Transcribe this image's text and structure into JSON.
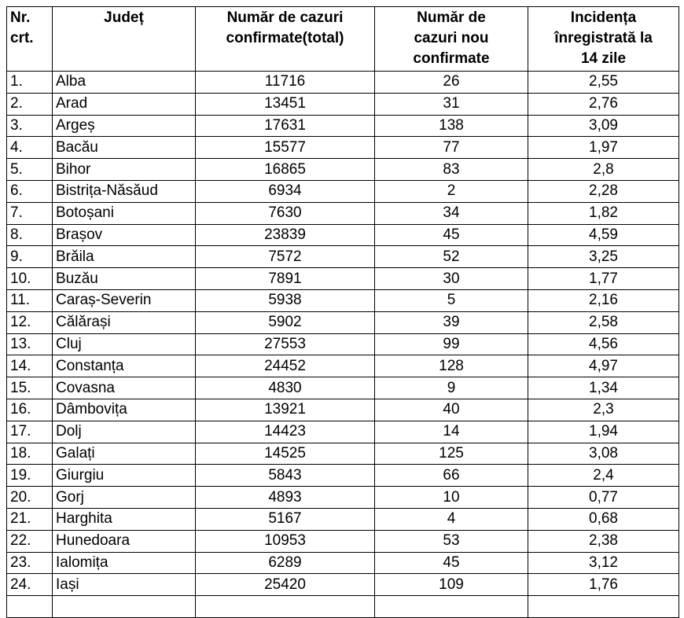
{
  "header": {
    "nr": [
      "Nr.",
      "crt."
    ],
    "judet": [
      "Județ"
    ],
    "total": [
      "Număr de cazuri",
      "confirmate(total)"
    ],
    "noi": [
      "Număr de",
      "cazuri nou",
      "confirmate"
    ],
    "incidenta": [
      "Incidența",
      "înregistrată la",
      "14 zile"
    ]
  },
  "rows": [
    {
      "nr": "1.",
      "judet": "Alba",
      "total": "11716",
      "noi": "26",
      "incidenta": "2,55"
    },
    {
      "nr": "2.",
      "judet": "Arad",
      "total": "13451",
      "noi": "31",
      "incidenta": "2,76"
    },
    {
      "nr": "3.",
      "judet": "Argeș",
      "total": "17631",
      "noi": "138",
      "incidenta": "3,09"
    },
    {
      "nr": "4.",
      "judet": "Bacău",
      "total": "15577",
      "noi": "77",
      "incidenta": "1,97"
    },
    {
      "nr": "5.",
      "judet": "Bihor",
      "total": "16865",
      "noi": "83",
      "incidenta": "2,8"
    },
    {
      "nr": "6.",
      "judet": "Bistrița-Năsăud",
      "total": "6934",
      "noi": "2",
      "incidenta": "2,28"
    },
    {
      "nr": "7.",
      "judet": "Botoșani",
      "total": "7630",
      "noi": "34",
      "incidenta": "1,82"
    },
    {
      "nr": "8.",
      "judet": "Brașov",
      "total": "23839",
      "noi": "45",
      "incidenta": "4,59"
    },
    {
      "nr": "9.",
      "judet": "Brăila",
      "total": "7572",
      "noi": "52",
      "incidenta": "3,25"
    },
    {
      "nr": "10.",
      "judet": "Buzău",
      "total": "7891",
      "noi": "30",
      "incidenta": "1,77"
    },
    {
      "nr": "11.",
      "judet": "Caraș-Severin",
      "total": "5938",
      "noi": "5",
      "incidenta": "2,16"
    },
    {
      "nr": "12.",
      "judet": "Călărași",
      "total": "5902",
      "noi": "39",
      "incidenta": "2,58"
    },
    {
      "nr": "13.",
      "judet": "Cluj",
      "total": "27553",
      "noi": "99",
      "incidenta": "4,56"
    },
    {
      "nr": "14.",
      "judet": "Constanța",
      "total": "24452",
      "noi": "128",
      "incidenta": "4,97"
    },
    {
      "nr": "15.",
      "judet": "Covasna",
      "total": "4830",
      "noi": "9",
      "incidenta": "1,34"
    },
    {
      "nr": "16.",
      "judet": "Dâmbovița",
      "total": "13921",
      "noi": "40",
      "incidenta": "2,3"
    },
    {
      "nr": "17.",
      "judet": "Dolj",
      "total": "14423",
      "noi": "14",
      "incidenta": "1,94"
    },
    {
      "nr": "18.",
      "judet": "Galați",
      "total": "14525",
      "noi": "125",
      "incidenta": "3,08"
    },
    {
      "nr": "19.",
      "judet": "Giurgiu",
      "total": "5843",
      "noi": "66",
      "incidenta": "2,4"
    },
    {
      "nr": "20.",
      "judet": "Gorj",
      "total": "4893",
      "noi": "10",
      "incidenta": "0,77"
    },
    {
      "nr": "21.",
      "judet": "Harghita",
      "total": "5167",
      "noi": "4",
      "incidenta": "0,68"
    },
    {
      "nr": "22.",
      "judet": "Hunedoara",
      "total": "10953",
      "noi": "53",
      "incidenta": "2,38"
    },
    {
      "nr": "23.",
      "judet": "Ialomița",
      "total": "6289",
      "noi": "45",
      "incidenta": "3,12"
    },
    {
      "nr": "24.",
      "judet": "Iași",
      "total": "25420",
      "noi": "109",
      "incidenta": "1,76"
    }
  ]
}
